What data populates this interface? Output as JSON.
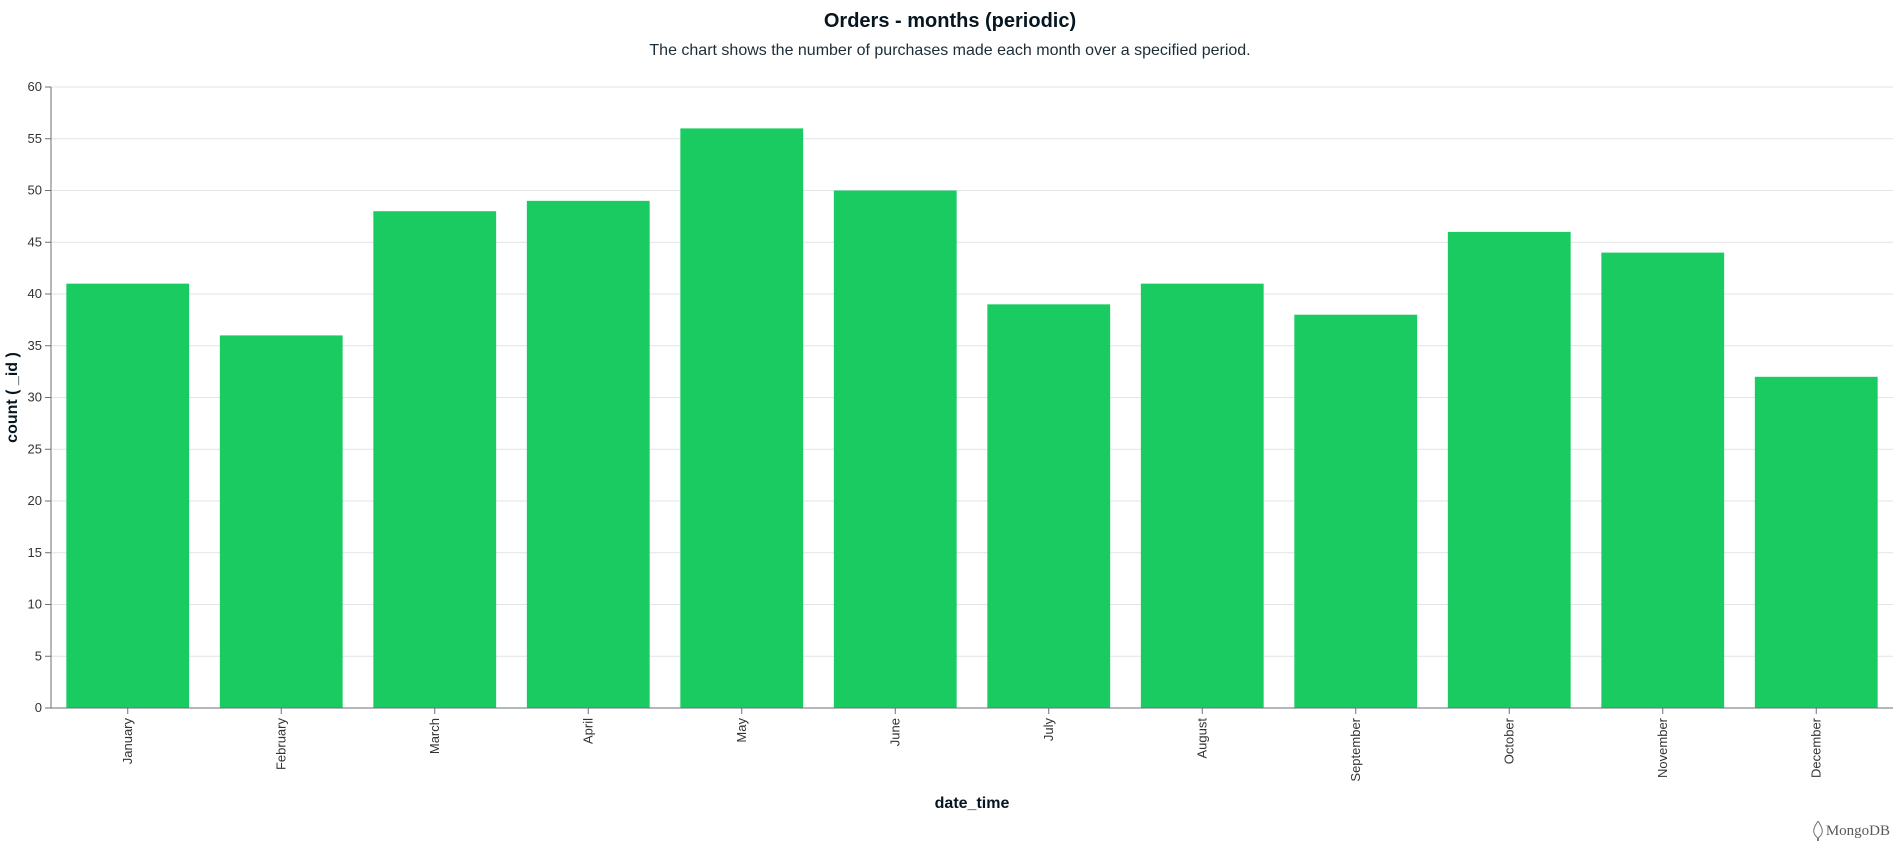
{
  "chart_data": {
    "type": "bar",
    "title": "Orders - months (periodic)",
    "subtitle": "The chart shows the number of purchases made each month over a specified period.",
    "xlabel": "date_time",
    "ylabel": "count ( _id )",
    "categories": [
      "January",
      "February",
      "March",
      "April",
      "May",
      "June",
      "July",
      "August",
      "September",
      "October",
      "November",
      "December"
    ],
    "values": [
      41,
      36,
      48,
      49,
      56,
      50,
      39,
      41,
      38,
      46,
      44,
      32
    ],
    "ylim": [
      0,
      60
    ],
    "yticks": [
      0,
      5,
      10,
      15,
      20,
      25,
      30,
      35,
      40,
      45,
      50,
      55,
      60
    ],
    "grid": true,
    "bar_color": "#19cb61"
  },
  "branding": {
    "logo_text": "MongoDB",
    "logo_color": "#555a5e",
    "icon": "mongodb-leaf-icon"
  }
}
